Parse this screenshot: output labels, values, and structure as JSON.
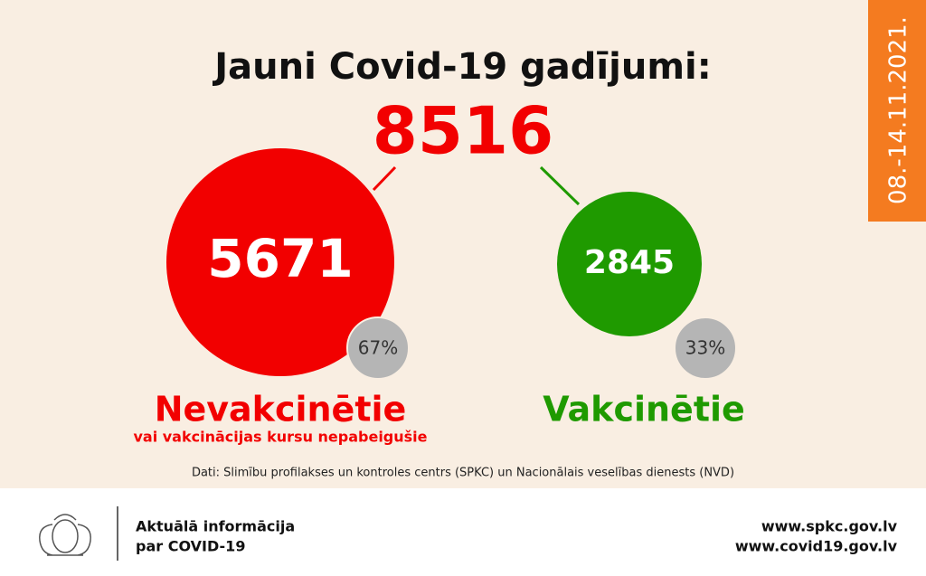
{
  "header": {
    "title": "Jauni Covid-19 gadījumi:",
    "total": "8516",
    "period": "08.-14.11.2021."
  },
  "groups": [
    {
      "value": "5671",
      "share": "67%",
      "name": "Nevakcinētie",
      "subtitle": "vai vakcinācijas kursu nepabeigušie"
    },
    {
      "value": "2845",
      "share": "33%",
      "name": "Vakcinētie"
    }
  ],
  "source": "Dati: Slimību profilakses un kontroles centrs (SPKC) un Nacionālais veselības dienests (NVD)",
  "footer": {
    "info": [
      "Aktuālā informācija",
      "par COVID-19"
    ],
    "links": [
      "www.spkc.gov.lv",
      "www.covid19.gov.lv"
    ]
  }
}
